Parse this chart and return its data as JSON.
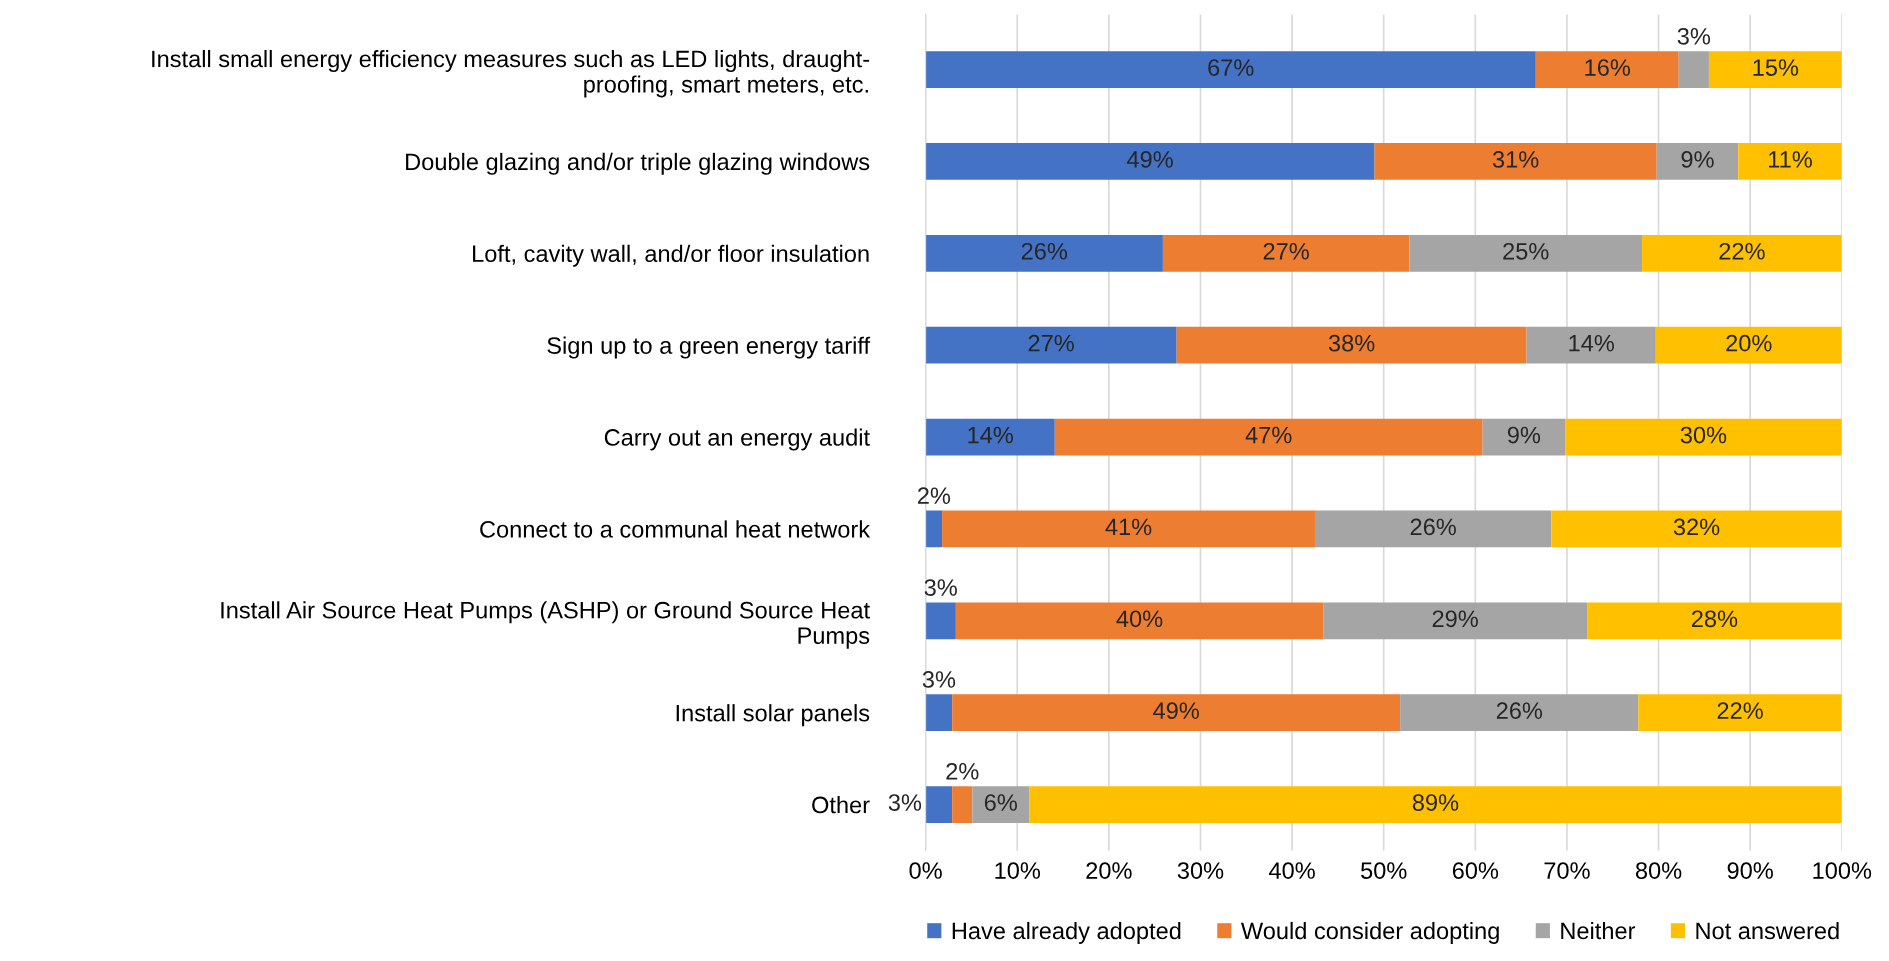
{
  "chart_data": {
    "type": "bar",
    "orientation": "horizontal",
    "stacked": true,
    "categories": [
      "Install small energy efficiency measures such as LED lights, draught-\nproofing, smart meters, etc.",
      "Double glazing and/or triple glazing windows",
      "Loft, cavity wall, and/or floor insulation",
      "Sign up to a green energy tariff",
      "Carry out an energy audit",
      "Connect to a communal heat network",
      "Install Air Source Heat Pumps (ASHP) or Ground Source Heat\nPumps",
      "Install solar panels",
      "Other"
    ],
    "series": [
      {
        "name": "Have already adopted",
        "color": "#4472c4",
        "values": [
          66.6,
          49.0,
          25.9,
          27.4,
          14.1,
          1.8,
          3.3,
          2.9,
          2.9
        ],
        "value_labels": [
          "67%",
          "49%",
          "26%",
          "27%",
          "14%",
          "2%",
          "3%",
          "3%",
          "3%"
        ]
      },
      {
        "name": "Would consider adopting",
        "color": "#ed7d31",
        "values": [
          15.6,
          30.8,
          26.9,
          38.2,
          46.7,
          40.7,
          40.1,
          48.9,
          2.2
        ],
        "value_labels": [
          "16%",
          "31%",
          "27%",
          "38%",
          "47%",
          "41%",
          "40%",
          "49%",
          "2%"
        ]
      },
      {
        "name": "Neither",
        "color": "#a5a5a5",
        "values": [
          3.3,
          8.9,
          25.4,
          14.1,
          9.0,
          25.8,
          28.8,
          26.0,
          6.2
        ],
        "value_labels": [
          "3%",
          "9%",
          "25%",
          "14%",
          "9%",
          "26%",
          "29%",
          "26%",
          "6%"
        ]
      },
      {
        "name": "Not answered",
        "color": "#ffc000",
        "values": [
          14.5,
          11.3,
          21.8,
          20.3,
          30.2,
          31.7,
          27.8,
          22.2,
          88.7
        ],
        "value_labels": [
          "15%",
          "11%",
          "22%",
          "20%",
          "30%",
          "32%",
          "28%",
          "22%",
          "89%"
        ]
      }
    ],
    "xlim": [
      0,
      100
    ],
    "xticks": [
      {
        "value": 0,
        "label": "0%"
      },
      {
        "value": 10,
        "label": "10%"
      },
      {
        "value": 20,
        "label": "20%"
      },
      {
        "value": 30,
        "label": "30%"
      },
      {
        "value": 40,
        "label": "40%"
      },
      {
        "value": 50,
        "label": "50%"
      },
      {
        "value": 60,
        "label": "60%"
      },
      {
        "value": 70,
        "label": "70%"
      },
      {
        "value": 80,
        "label": "80%"
      },
      {
        "value": 90,
        "label": "90%"
      },
      {
        "value": 100,
        "label": "100%"
      }
    ],
    "grid": "x",
    "legend": "bottom"
  }
}
